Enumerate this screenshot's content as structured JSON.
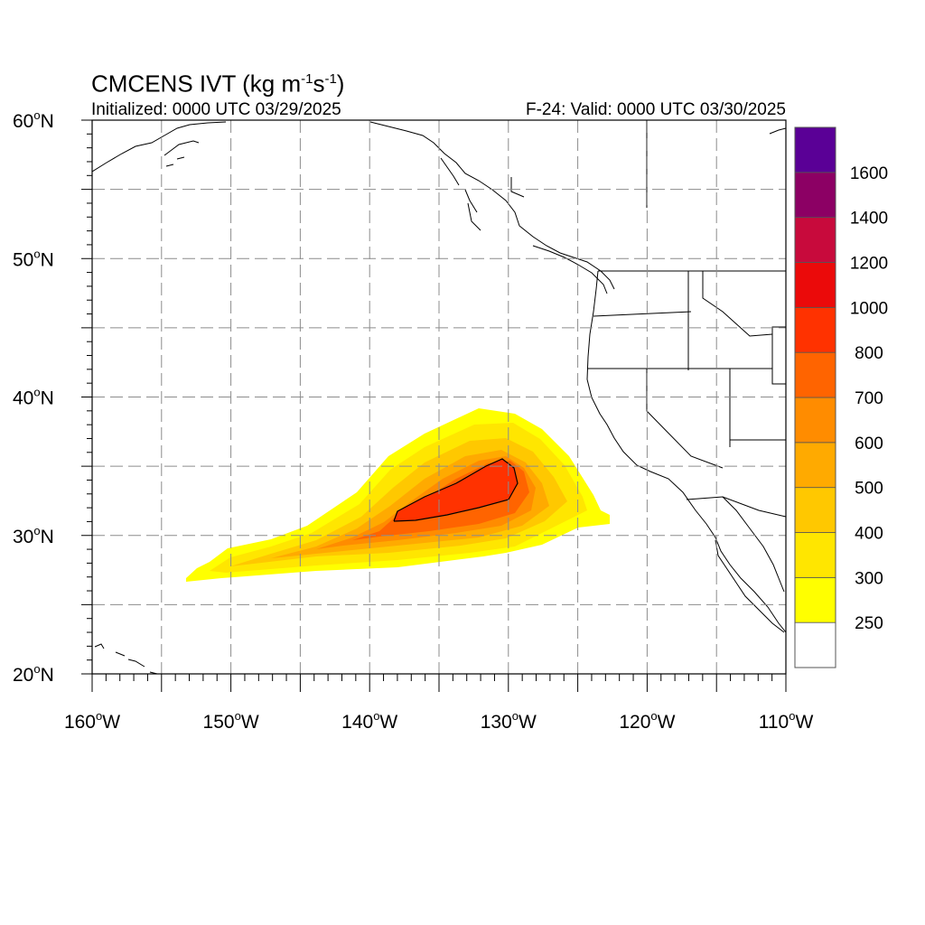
{
  "header": {
    "model": "CMCENS IVT",
    "units_prefix": "(kg m",
    "units_exp1": "-1",
    "units_mid": "s",
    "units_exp2": "-1",
    "units_suffix": ")",
    "initialized": "Initialized: 0000 UTC 03/29/2025",
    "valid": "F-24: Valid: 0000 UTC 03/30/2025"
  },
  "map": {
    "lon_range": [
      -160,
      -110
    ],
    "lat_range": [
      20,
      60
    ],
    "lat_labels": [
      {
        "lat": 60,
        "text": "60",
        "hemi": "N"
      },
      {
        "lat": 50,
        "text": "50",
        "hemi": "N"
      },
      {
        "lat": 40,
        "text": "40",
        "hemi": "N"
      },
      {
        "lat": 30,
        "text": "30",
        "hemi": "N"
      },
      {
        "lat": 20,
        "text": "20",
        "hemi": "N"
      }
    ],
    "lon_labels": [
      {
        "lon": -160,
        "text": "160",
        "hemi": "W"
      },
      {
        "lon": -150,
        "text": "150",
        "hemi": "W"
      },
      {
        "lon": -140,
        "text": "140",
        "hemi": "W"
      },
      {
        "lon": -130,
        "text": "130",
        "hemi": "W"
      },
      {
        "lon": -120,
        "text": "120",
        "hemi": "W"
      },
      {
        "lon": -110,
        "text": "110",
        "hemi": "W"
      }
    ],
    "grid_step_deg": 5,
    "grid_dashed": true
  },
  "colorbar": {
    "levels": [
      {
        "label": "",
        "color": "#ffffff"
      },
      {
        "label": "250",
        "color": "#ffff00"
      },
      {
        "label": "300",
        "color": "#ffe600"
      },
      {
        "label": "400",
        "color": "#ffc800"
      },
      {
        "label": "500",
        "color": "#ffaa00"
      },
      {
        "label": "600",
        "color": "#ff8c00"
      },
      {
        "label": "700",
        "color": "#ff6400"
      },
      {
        "label": "800",
        "color": "#ff3200"
      },
      {
        "label": "1000",
        "color": "#eb0a0a"
      },
      {
        "label": "1200",
        "color": "#c80a3c"
      },
      {
        "label": "1400",
        "color": "#8c0064"
      },
      {
        "label": "1600",
        "color": "#5a0096"
      }
    ]
  },
  "ivt_field": {
    "description_level_colors": [
      "#ffff00",
      "#ffe600",
      "#ffc800",
      "#ffaa00",
      "#ff8c00",
      "#ff6400",
      "#ff3200"
    ]
  }
}
